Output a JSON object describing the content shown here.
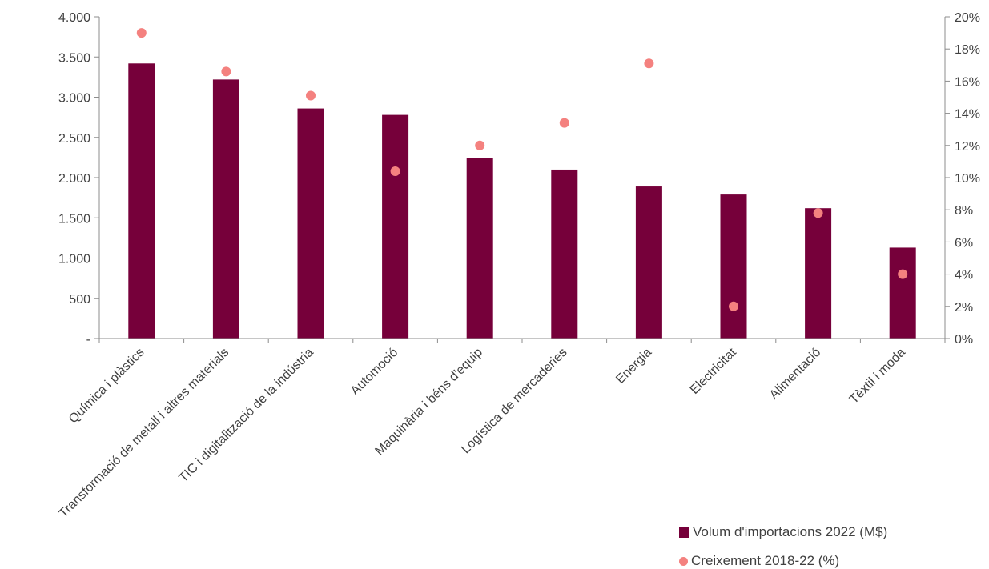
{
  "chart_data": {
    "type": "bar",
    "categories": [
      "Química i plàstics",
      "Transformació de metall i altres materials",
      "TIC i digitalització de la indústria",
      "Automoció",
      "Maquinària i béns d'equip",
      "Logística de mercaderies",
      "Energia",
      "Electricitat",
      "Alimentació",
      "Tèxtil i moda"
    ],
    "series": [
      {
        "name": "Volum d'importacions 2022 (M$)",
        "type": "bar",
        "axis": "left",
        "color": "#76003a",
        "values": [
          3420,
          3220,
          2860,
          2780,
          2240,
          2100,
          1890,
          1790,
          1620,
          1130
        ]
      },
      {
        "name": "Creixement 2018-22 (%)",
        "type": "scatter",
        "axis": "right",
        "color": "#f4817f",
        "values": [
          19.0,
          16.6,
          15.1,
          10.4,
          12.0,
          13.4,
          17.1,
          2.0,
          7.8,
          4.0
        ]
      }
    ],
    "y_left": {
      "ylim": [
        0,
        4000
      ],
      "ticks": [
        0,
        500,
        1000,
        1500,
        2000,
        2500,
        3000,
        3500,
        4000
      ],
      "tick_labels": [
        "-",
        "500",
        "1.000",
        "1.500",
        "2.000",
        "2.500",
        "3.000",
        "3.500",
        "4.000"
      ]
    },
    "y_right": {
      "ylim": [
        0,
        20
      ],
      "ticks": [
        0,
        2,
        4,
        6,
        8,
        10,
        12,
        14,
        16,
        18,
        20
      ],
      "tick_labels": [
        "0%",
        "2%",
        "4%",
        "6%",
        "8%",
        "10%",
        "12%",
        "14%",
        "16%",
        "18%",
        "20%"
      ]
    },
    "legend_position": "bottom-right",
    "grid": false
  }
}
